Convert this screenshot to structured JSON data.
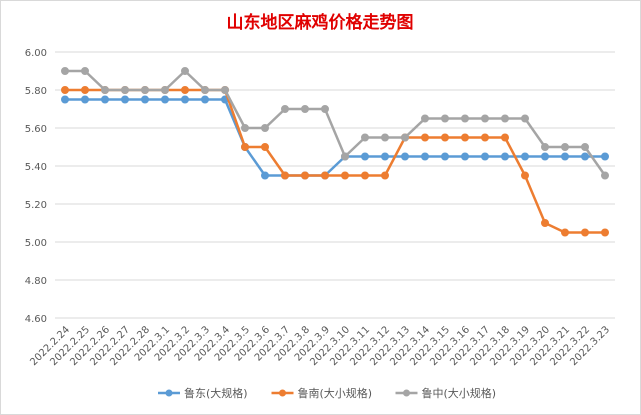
{
  "chart_data": {
    "type": "line",
    "title": "山东地区麻鸡价格走势图",
    "title_color": "#e00000",
    "categories": [
      "2022.2.24",
      "2022.2.25",
      "2022.2.26",
      "2022.2.27",
      "2022.2.28",
      "2022.3.1",
      "2022.3.2",
      "2022.3.3",
      "2022.3.4",
      "2022.3.5",
      "2022.3.6",
      "2022.3.7",
      "2022.3.8",
      "2022.3.9",
      "2022.3.10",
      "2022.3.11",
      "2022.3.12",
      "2022.3.13",
      "2022.3.14",
      "2022.3.15",
      "2022.3.16",
      "2022.3.17",
      "2022.3.18",
      "2022.3.19",
      "2022.3.20",
      "2022.3.21",
      "2022.3.22",
      "2022.3.23"
    ],
    "ylim": [
      4.6,
      6.0
    ],
    "yticks": [
      "6.00",
      "5.80",
      "5.60",
      "5.40",
      "5.20",
      "5.00",
      "4.80",
      "4.60"
    ],
    "grid": true,
    "legend_position": "bottom",
    "series": [
      {
        "name": "鲁东(大规格)",
        "color": "#5b9bd5",
        "values": [
          5.75,
          5.75,
          5.75,
          5.75,
          5.75,
          5.75,
          5.75,
          5.75,
          5.75,
          5.5,
          5.35,
          5.35,
          5.35,
          5.35,
          5.45,
          5.45,
          5.45,
          5.45,
          5.45,
          5.45,
          5.45,
          5.45,
          5.45,
          5.45,
          5.45,
          5.45,
          5.45,
          5.45
        ]
      },
      {
        "name": "鲁南(大小规格)",
        "color": "#ed7d31",
        "values": [
          5.8,
          5.8,
          5.8,
          5.8,
          5.8,
          5.8,
          5.8,
          5.8,
          5.8,
          5.5,
          5.5,
          5.35,
          5.35,
          5.35,
          5.35,
          5.35,
          5.35,
          5.55,
          5.55,
          5.55,
          5.55,
          5.55,
          5.55,
          5.35,
          5.1,
          5.05,
          5.05,
          5.05
        ]
      },
      {
        "name": "鲁中(大小规格)",
        "color": "#a5a5a5",
        "values": [
          5.9,
          5.9,
          5.8,
          5.8,
          5.8,
          5.8,
          5.9,
          5.8,
          5.8,
          5.6,
          5.6,
          5.7,
          5.7,
          5.7,
          5.45,
          5.55,
          5.55,
          5.55,
          5.65,
          5.65,
          5.65,
          5.65,
          5.65,
          5.65,
          5.5,
          5.5,
          5.5,
          5.35
        ]
      }
    ]
  }
}
